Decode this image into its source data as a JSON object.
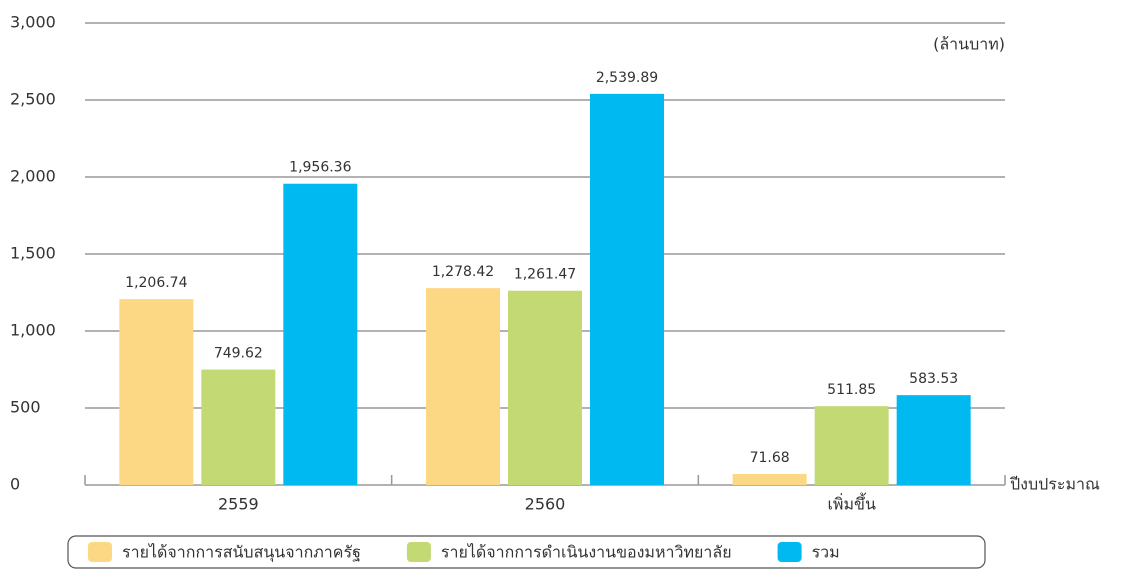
{
  "chart_data": {
    "type": "bar",
    "categories": [
      "2559",
      "2560",
      "เพิ่มขึ้น"
    ],
    "series": [
      {
        "name": "รายได้จากการสนับสนุนจากภาครัฐ",
        "color": "#fdd884",
        "values": [
          1206.74,
          1278.42,
          71.68
        ],
        "value_labels": [
          "1,206.74",
          "1,278.42",
          "71.68"
        ]
      },
      {
        "name": "รายได้จากการดำเนินงานของมหาวิทยาลัย",
        "color": "#c3d974",
        "values": [
          749.62,
          1261.47,
          511.85
        ],
        "value_labels": [
          "749.62",
          "1,261.47",
          "511.85"
        ]
      },
      {
        "name": "รวม",
        "color": "#00b9f1",
        "values": [
          1956.36,
          2539.89,
          583.53
        ],
        "value_labels": [
          "1,956.36",
          "2,539.89",
          "583.53"
        ]
      }
    ],
    "y_unit": "(ล้านบาท)",
    "x_label": "ปีงบประมาณ",
    "ylim": [
      0,
      3000
    ],
    "yticks": [
      0,
      500,
      {
        "value": 1000,
        "label": "1,000"
      },
      {
        "value": 1500,
        "label": "1,500"
      },
      {
        "value": 2000,
        "label": "2,000"
      },
      {
        "value": 2500,
        "label": "2,500"
      },
      {
        "value": 3000,
        "label": "3,000"
      }
    ],
    "grid": true,
    "legend": "bottom"
  }
}
